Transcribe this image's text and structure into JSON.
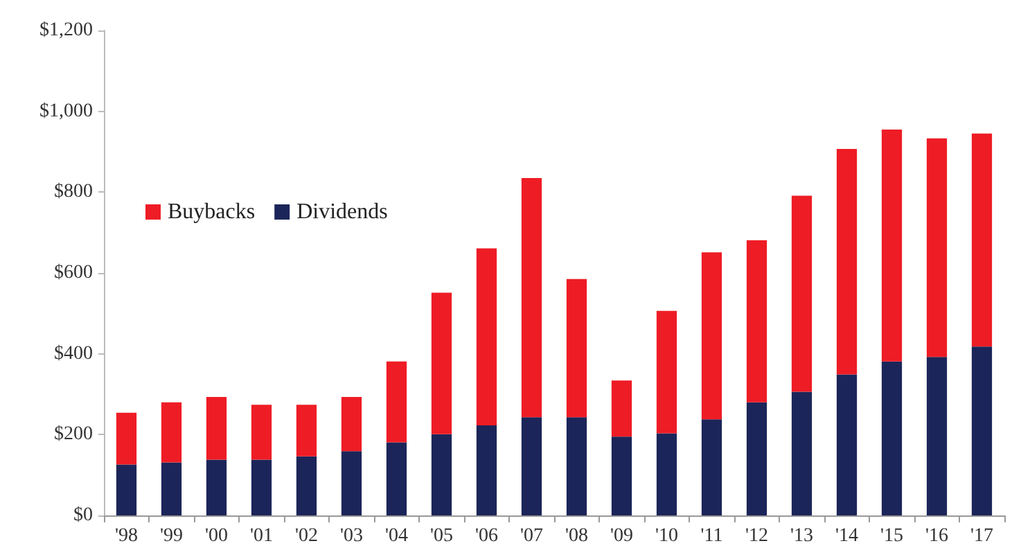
{
  "chart_data": {
    "type": "bar",
    "stacked": true,
    "categories": [
      "'98",
      "'99",
      "'00",
      "'01",
      "'02",
      "'03",
      "'04",
      "'05",
      "'06",
      "'07",
      "'08",
      "'09",
      "'10",
      "'11",
      "'12",
      "'13",
      "'14",
      "'15",
      "'16",
      "'17"
    ],
    "series": [
      {
        "name": "Dividends",
        "color": "#1c2559",
        "values": [
          126,
          131,
          138,
          138,
          146,
          159,
          181,
          201,
          223,
          243,
          243,
          195,
          203,
          238,
          280,
          306,
          349,
          381,
          392,
          418
        ]
      },
      {
        "name": "Buybacks",
        "color": "#ee1c25",
        "values": [
          128,
          149,
          155,
          136,
          128,
          134,
          200,
          350,
          438,
          592,
          342,
          139,
          303,
          413,
          401,
          485,
          558,
          574,
          541,
          527
        ]
      }
    ],
    "ylim": [
      0,
      1200
    ],
    "yticks": [
      {
        "value": 0,
        "label": "$0"
      },
      {
        "value": 200,
        "label": "$200"
      },
      {
        "value": 400,
        "label": "$400"
      },
      {
        "value": 600,
        "label": "$600"
      },
      {
        "value": 800,
        "label": "$800"
      },
      {
        "value": 1000,
        "label": "$1,000"
      },
      {
        "value": 1200,
        "label": "$1,200"
      }
    ],
    "grid": false,
    "legend": "top left"
  }
}
